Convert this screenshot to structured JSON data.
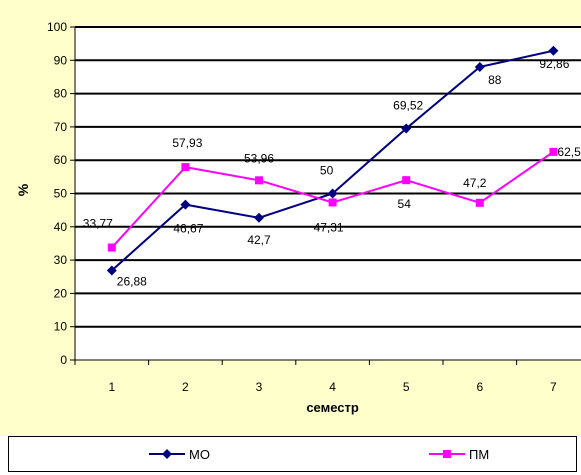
{
  "chart_data": {
    "type": "line",
    "title": "",
    "xlabel": "семестр",
    "ylabel": "%",
    "x": [
      1,
      2,
      3,
      4,
      5,
      6,
      7
    ],
    "xticks": [
      "1",
      "2",
      "3",
      "4",
      "5",
      "6",
      "7"
    ],
    "ylim": [
      0,
      100
    ],
    "yticks": [
      "0",
      "10",
      "20",
      "30",
      "40",
      "50",
      "60",
      "70",
      "80",
      "90",
      "100"
    ],
    "grid": true,
    "legend": "bottom",
    "series": [
      {
        "name": "МО",
        "color": "#000080",
        "marker": "diamond",
        "values": [
          26.88,
          46.67,
          42.7,
          50,
          69.52,
          88,
          92.86
        ],
        "labels": [
          "26,88",
          "46,67",
          "42,7",
          "50",
          "69,52",
          "88",
          "92,86"
        ]
      },
      {
        "name": "ПМ",
        "color": "#ff00ff",
        "marker": "square",
        "values": [
          33.77,
          57.93,
          53.96,
          47.31,
          54,
          47.2,
          62.5
        ],
        "labels": [
          "33,77",
          "57,93",
          "53,96",
          "47,31",
          "54",
          "47,2",
          "62,5"
        ]
      }
    ],
    "colors": {
      "background": "#ffffcc",
      "plot_area": "#ffffff",
      "grid": "#000000"
    }
  }
}
